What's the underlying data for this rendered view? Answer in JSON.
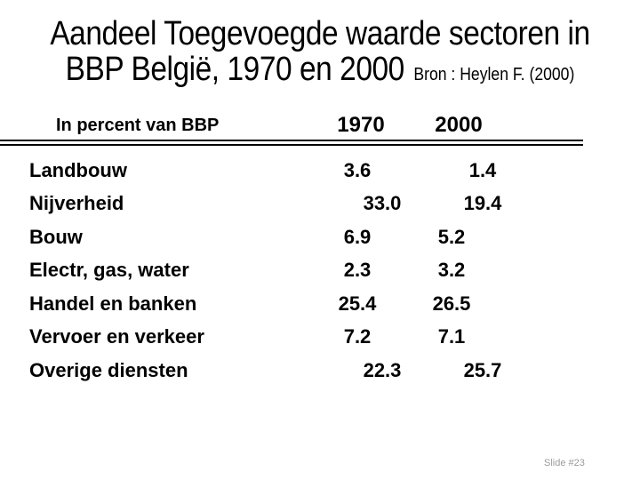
{
  "slide": {
    "title_line1": "Aandeel Toegevoegde waarde sectoren in",
    "title_line2": "BBP België, 1970 en 2000",
    "source_note": "Bron : Heylen F. (2000)",
    "footer": "Slide #23"
  },
  "table": {
    "header": {
      "label": "In percent van BBP",
      "col1": "1970",
      "col2": "2000"
    },
    "rows": [
      {
        "label": "Landbouw",
        "v1970": "3.6",
        "v2000": "1.4"
      },
      {
        "label": "Nijverheid",
        "v1970": "33.0",
        "v2000": "19.4"
      },
      {
        "label": "Bouw",
        "v1970": "6.9",
        "v2000": "5.2"
      },
      {
        "label": "Electr, gas, water",
        "v1970": "2.3",
        "v2000": "3.2"
      },
      {
        "label": "Handel en banken",
        "v1970": "25.4",
        "v2000": "26.5"
      },
      {
        "label": "Vervoer en verkeer",
        "v1970": "7.2",
        "v2000": "7.1"
      },
      {
        "label": "Overige diensten",
        "v1970": "22.3",
        "v2000": "25.7"
      }
    ]
  },
  "colors": {
    "background": "#ffffff",
    "text": "#000000",
    "footer_text": "#9b9b9b"
  }
}
